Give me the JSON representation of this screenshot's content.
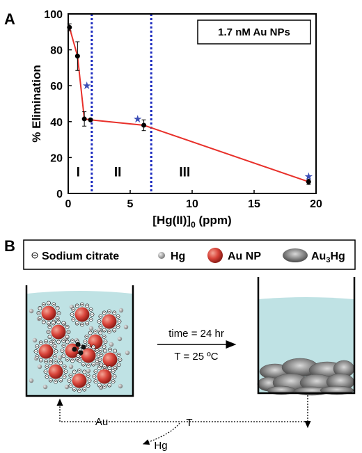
{
  "panel_a": {
    "label": "A",
    "annotation": "1.7 nM Au NPs",
    "region_labels": [
      "I",
      "II",
      "III"
    ],
    "x_label_prefix": "[Hg(II)]",
    "x_label_sub": "0",
    "x_label_suffix": " (ppm)",
    "y_label": "% Elimination"
  },
  "chart_data": {
    "type": "line",
    "xlim": [
      0,
      20
    ],
    "ylim": [
      0,
      100
    ],
    "x_ticks": [
      0,
      5,
      10,
      15,
      20
    ],
    "y_ticks": [
      0,
      20,
      40,
      60,
      80,
      100
    ],
    "series": [
      {
        "color": "#e8302a",
        "marker": "circle",
        "x": [
          0.1,
          0.75,
          1.3,
          1.8,
          6.1,
          19.4
        ],
        "y": [
          92.5,
          76.5,
          41.5,
          41.0,
          38.0,
          6.5
        ],
        "err": [
          2,
          8,
          4,
          0,
          3,
          1.5
        ]
      },
      {
        "color": "#3b4db5",
        "marker": "star",
        "x": [
          1.5,
          5.6,
          19.4
        ],
        "y": [
          60,
          41.5,
          9.5
        ]
      }
    ],
    "boundaries": [
      1.9,
      6.7
    ],
    "region_x": [
      0.8,
      4.0,
      9.4
    ],
    "region_y": 13,
    "boundary_color": "#1c2bbf"
  },
  "panel_b": {
    "label": "B",
    "legend": {
      "citrate": "Sodium citrate",
      "hg": "Hg",
      "aunp": "Au NP",
      "amalgam_main": "Au",
      "amalgam_sub": "3",
      "amalgam_end": "Hg"
    },
    "arrow_top": "time = 24 hr",
    "arrow_bottom": "T = 25 ºC",
    "cycle_au": "Au",
    "cycle_t": "T",
    "cycle_hg": "Hg"
  },
  "colors": {
    "water": "#bfe2e4",
    "au_np": "#d8443a",
    "hg_atom": "#9a9a9a",
    "amalgam": "#6a6a6a"
  }
}
